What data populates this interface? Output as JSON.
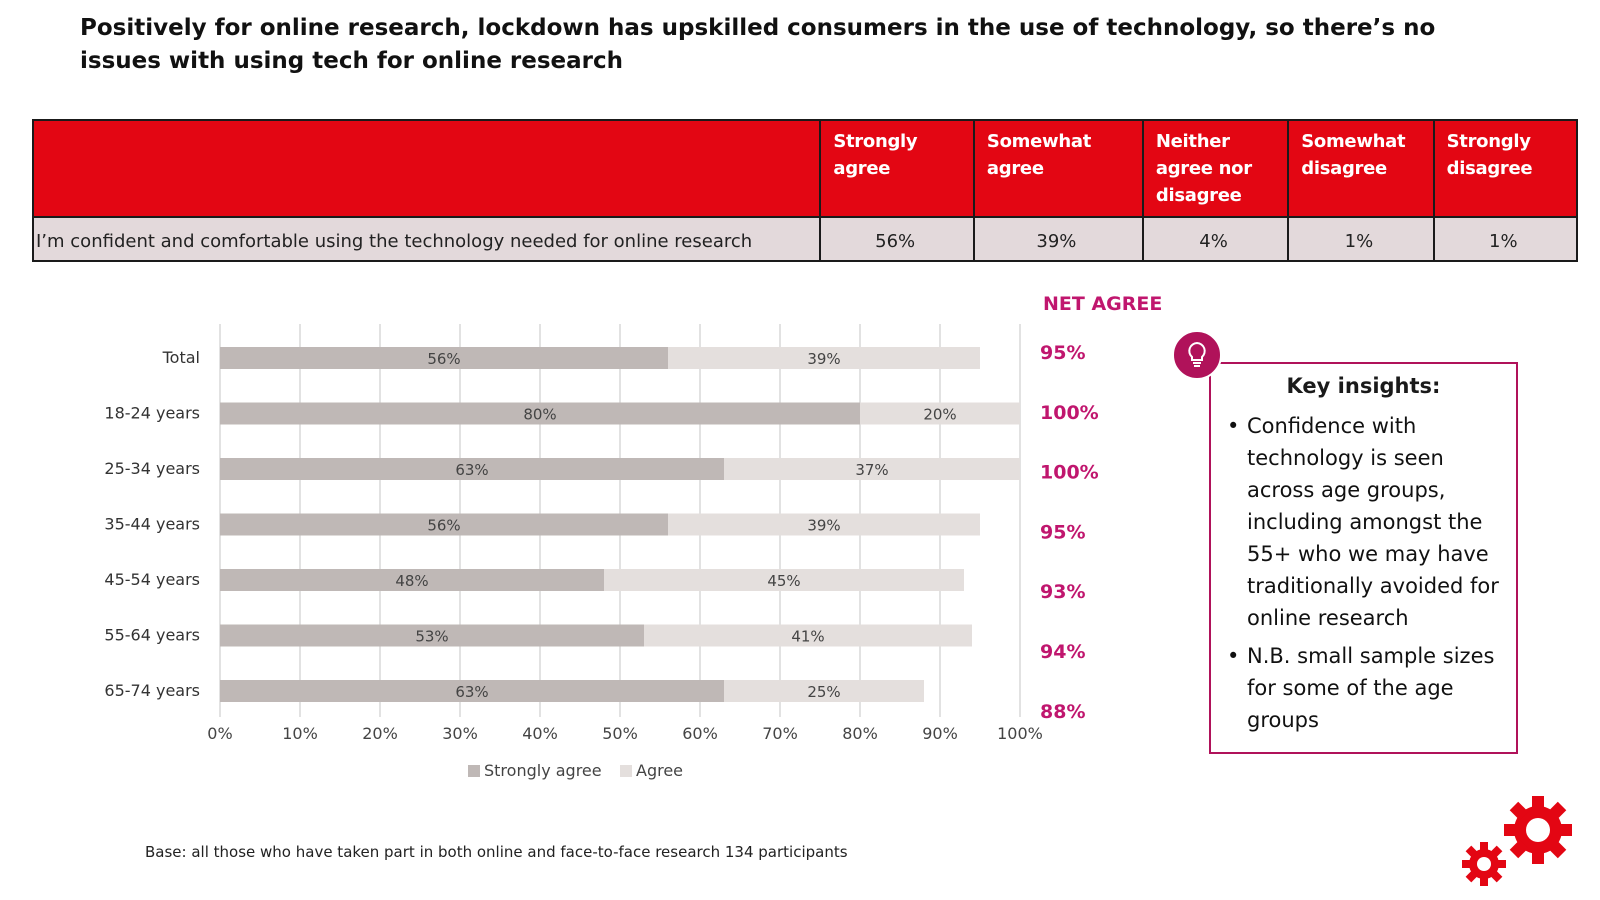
{
  "title": "Positively for online research, lockdown has upskilled consumers in the use of technology, so there’s no issues with using tech for online research",
  "table": {
    "headers": [
      "Strongly agree",
      "Somewhat agree",
      "Neither agree nor disagree",
      "Somewhat disagree",
      "Strongly disagree"
    ],
    "row": {
      "statement": "I’m confident and comfortable using the technology needed for online research",
      "values": [
        "56%",
        "39%",
        "4%",
        "1%",
        "1%"
      ]
    }
  },
  "net_agree_heading": "NET AGREE",
  "chart_data": {
    "type": "bar",
    "orientation": "horizontal",
    "stacked": true,
    "categories": [
      "Total",
      "18-24 years",
      "25-34 years",
      "35-44 years",
      "45-54 years",
      "55-64 years",
      "65-74 years"
    ],
    "series": [
      {
        "name": "Strongly agree",
        "values": [
          56,
          80,
          63,
          56,
          48,
          53,
          63
        ],
        "color": "#bfb8b6"
      },
      {
        "name": "Agree",
        "values": [
          39,
          20,
          37,
          39,
          45,
          41,
          25
        ],
        "color": "#e4dfdd"
      }
    ],
    "net_agree": [
      "95%",
      "100%",
      "100%",
      "95%",
      "93%",
      "94%",
      "88%"
    ],
    "x_ticks": [
      "0%",
      "10%",
      "20%",
      "30%",
      "40%",
      "50%",
      "60%",
      "70%",
      "80%",
      "90%",
      "100%"
    ],
    "xlim": [
      0,
      100
    ],
    "grid": true,
    "legend": "bottom",
    "net_color": "#c0166e"
  },
  "insights": {
    "icon": "lightbulb-icon",
    "title": "Key insights:",
    "bullets": [
      "Confidence with technology is seen across age groups, including amongst the 55+ who we may have traditionally avoided for online research",
      "N.B. small sample sizes for some of the age groups"
    ],
    "accent": "#b0125a"
  },
  "base_note": "Base: all those who have taken part in both online and face-to-face research 134 participants",
  "colors": {
    "header_red": "#e30613",
    "row_bg": "#e3d9db",
    "logo_red": "#e30613"
  }
}
